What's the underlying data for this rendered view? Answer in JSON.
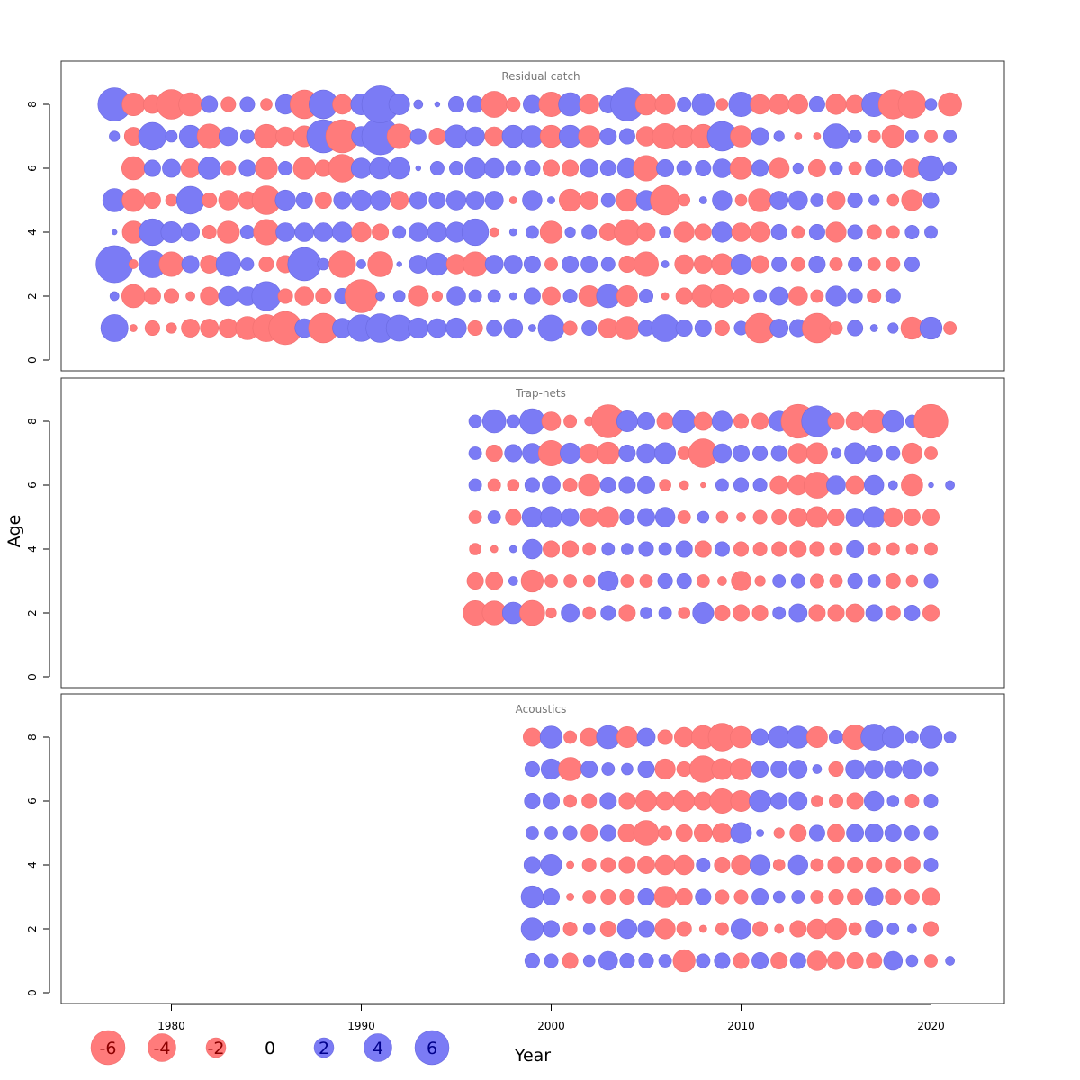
{
  "chart_data": {
    "type": "scatter",
    "subtype": "bubble",
    "xlabel": "Year",
    "ylabel": "Age",
    "xlim": [
      1974,
      2024
    ],
    "ylim": [
      0,
      9
    ],
    "x_ticks": [
      1980,
      1990,
      2000,
      2010,
      2020
    ],
    "y_ticks": [
      0,
      2,
      4,
      6,
      8
    ],
    "colors": {
      "positive": "#7b7bf5",
      "negative": "#ff7b7b"
    },
    "legend": {
      "placement": "bottom-left",
      "values": [
        -6,
        -4,
        -2,
        0,
        2,
        4,
        6
      ],
      "labels": [
        "-6",
        "-4",
        "-2",
        "0",
        "2",
        "4",
        "6"
      ]
    },
    "panels": [
      {
        "title": "Residual catch",
        "years": [
          1977,
          2021
        ],
        "ages": [
          1,
          2,
          3,
          4,
          5,
          6,
          7,
          8
        ],
        "residuals": {
          "8": [
            4.0,
            -1.9,
            -1.2,
            -3.2,
            -2.0,
            1.0,
            -0.8,
            0.8,
            -0.5,
            1.4,
            -3.0,
            3.0,
            -1.4,
            1.6,
            5.0,
            1.6,
            0.3,
            0.1,
            0.9,
            1.0,
            -2.5,
            -0.7,
            1.2,
            -2.2,
            2.0,
            -1.4,
            1.1,
            4.0,
            -1.7,
            -1.5,
            0.7,
            1.8,
            -0.5,
            2.2,
            -1.4,
            -1.5,
            -1.4,
            0.9,
            -1.5,
            -1.2,
            2.2,
            -3.1,
            -2.8,
            0.5,
            -2.0
          ],
          "7": [
            0.4,
            -1.2,
            2.8,
            0.5,
            1.8,
            -2.2,
            1.3,
            0.7,
            -2.1,
            -1.3,
            -1.6,
            4.0,
            -4.0,
            1.4,
            5.0,
            -2.2,
            0.9,
            -1.0,
            1.9,
            1.3,
            -1.3,
            1.8,
            1.7,
            -1.8,
            1.8,
            -1.7,
            1.0,
            0.9,
            -1.4,
            -2.4,
            -1.8,
            -2.1,
            3.2,
            -1.7,
            1.1,
            0.4,
            -0.2,
            -0.2,
            2.3,
            0.6,
            -0.6,
            -1.8,
            0.6,
            -0.6,
            0.6
          ],
          "6": [
            0,
            -2.0,
            1.0,
            1.2,
            -1.3,
            1.8,
            -0.8,
            1.0,
            -1.8,
            0.7,
            -1.8,
            -1.0,
            -2.8,
            1.5,
            1.7,
            1.7,
            0.1,
            0.7,
            0.7,
            1.6,
            1.4,
            0.8,
            0.9,
            -1.0,
            -1.0,
            1.2,
            0.9,
            1.4,
            -2.4,
            1.1,
            0.8,
            0.9,
            1.3,
            -1.8,
            1.0,
            -1.5,
            0.4,
            -1.1,
            0.6,
            -0.6,
            1.1,
            1.1,
            -1.3,
            2.3,
            0.6,
            -0.6
          ],
          "5": [
            2.0,
            -1.9,
            -1.0,
            -0.5,
            2.8,
            -0.8,
            -1.4,
            -1.1,
            -3.0,
            1.5,
            1.0,
            -1.0,
            1.1,
            1.5,
            1.4,
            -1.2,
            1.1,
            1.0,
            1.4,
            1.2,
            1.2,
            -0.2,
            1.4,
            0.2,
            -1.8,
            -1.2,
            0.7,
            -1.8,
            1.4,
            -3.2,
            -0.5,
            0.2,
            1.4,
            -0.5,
            -2.0,
            1.2,
            1.3,
            0.6,
            -1.2,
            0.8,
            0.4,
            -0.5,
            -1.6,
            0.9
          ],
          "4": [
            0.1,
            -1.8,
            2.6,
            1.6,
            1.2,
            -0.7,
            -1.8,
            0.7,
            -2.4,
            1.3,
            1.3,
            1.3,
            1.5,
            -1.4,
            -1.0,
            0.6,
            1.3,
            1.4,
            1.5,
            2.6,
            -0.3,
            0.2,
            0.6,
            -1.8,
            0.4,
            0.8,
            -1.1,
            -2.4,
            -1.2,
            0.5,
            -1.5,
            -1.0,
            1.5,
            -1.3,
            -1.5,
            0.9,
            -0.6,
            0.9,
            -1.5,
            0.8,
            -0.8,
            -0.6,
            0.7,
            0.6
          ],
          "3": [
            5.0,
            -0.3,
            2.7,
            -2.2,
            1.1,
            -1.2,
            2.2,
            0.6,
            -0.8,
            -1.1,
            4.0,
            0.5,
            -2.6,
            0.3,
            -2.3,
            0.1,
            1.2,
            1.8,
            -1.4,
            -2.2,
            1.2,
            1.2,
            1.0,
            -0.6,
            1.0,
            1.0,
            0.7,
            -1.0,
            -2.2,
            0.2,
            -1.3,
            -1.2,
            -1.6,
            1.5,
            -1.1,
            0.8,
            -0.7,
            1.0,
            -0.6,
            0.7,
            -0.6,
            -0.7,
            0.8
          ],
          "2": [
            0.3,
            -2.0,
            -1.0,
            -0.8,
            -0.3,
            -1.2,
            1.4,
            1.3,
            3.1,
            -0.8,
            -1.3,
            -0.9,
            0.9,
            -4.0,
            0.3,
            0.5,
            -1.5,
            -0.4,
            1.3,
            0.6,
            0.6,
            0.2,
            1.0,
            -1.2,
            0.7,
            -1.6,
            2.0,
            -1.6,
            0.7,
            -0.2,
            -1.0,
            -1.8,
            -1.9,
            -0.9,
            0.6,
            1.2,
            -1.3,
            -0.6,
            1.5,
            0.8,
            -0.7,
            0.8
          ],
          "1": [
            2.7,
            -0.2,
            -0.8,
            -0.4,
            -1.2,
            -1.2,
            -1.3,
            -2.0,
            -2.7,
            -4.0,
            1.3,
            -3.2,
            1.4,
            2.6,
            3.0,
            2.5,
            1.5,
            1.3,
            1.5,
            -0.8,
            0.9,
            1.3,
            0.2,
            2.5,
            -0.7,
            0.8,
            -1.4,
            -2.0,
            0.9,
            2.7,
            1.0,
            1.0,
            -0.8,
            0.7,
            -3.2,
            1.2,
            1.1,
            -3.2,
            -0.6,
            0.9,
            0.2,
            0.4,
            -1.8,
            1.8,
            -0.6
          ]
        }
      },
      {
        "title": "Trap-nets",
        "years": [
          1996,
          2021
        ],
        "ages": [
          2,
          3,
          4,
          5,
          6,
          7,
          8
        ],
        "residuals": {
          "8": [
            0.6,
            2.0,
            0.6,
            2.3,
            -1.3,
            -0.6,
            -0.3,
            -4.0,
            1.6,
            1.1,
            -1.0,
            1.9,
            -1.2,
            1.5,
            -0.8,
            -1.0,
            1.5,
            -4.2,
            3.5,
            -1.0,
            -1.2,
            -2.0,
            1.7,
            0.6,
            -4.2
          ],
          "7": [
            0.6,
            -1.0,
            1.1,
            1.4,
            -2.4,
            1.5,
            -1.3,
            -1.8,
            1.0,
            1.3,
            1.6,
            -0.6,
            -3.0,
            1.3,
            1.0,
            0.8,
            0.9,
            -1.4,
            -1.6,
            0.4,
            1.6,
            1.0,
            0.7,
            -1.5,
            -0.6
          ],
          "6": [
            0.6,
            -0.6,
            -0.5,
            0.8,
            1.2,
            -0.7,
            -1.7,
            0.9,
            1.0,
            1.1,
            -0.5,
            -0.3,
            -0.1,
            0.6,
            0.8,
            0.7,
            -1.2,
            -1.4,
            -2.5,
            1.3,
            -1.2,
            1.4,
            0.3,
            -1.7,
            0.1,
            0.3
          ],
          "5": [
            -0.6,
            0.6,
            -0.9,
            1.5,
            1.6,
            1.1,
            -1.2,
            -1.6,
            0.8,
            1.1,
            1.4,
            -0.6,
            0.5,
            -0.5,
            -0.3,
            -0.7,
            -0.8,
            -1.2,
            -1.6,
            -1.0,
            1.2,
            1.6,
            -1.3,
            -1.0,
            -1.0
          ],
          "4": [
            -0.5,
            -0.2,
            0.2,
            1.4,
            -1.0,
            -1.0,
            -0.6,
            0.6,
            0.5,
            0.8,
            0.6,
            1.0,
            -1.0,
            0.8,
            -0.8,
            -0.7,
            -0.8,
            -1.0,
            -0.8,
            -0.6,
            1.1,
            -0.6,
            -0.6,
            -0.5,
            -0.6
          ],
          "3": [
            -1.0,
            -1.1,
            0.3,
            -1.8,
            -0.6,
            -0.6,
            -0.5,
            1.5,
            -0.6,
            -0.6,
            0.8,
            0.8,
            -0.6,
            -0.3,
            -1.4,
            -0.4,
            0.6,
            0.7,
            -0.7,
            -0.6,
            0.8,
            0.6,
            -0.8,
            -0.5,
            0.7
          ],
          "2": [
            -2.2,
            -2.1,
            1.7,
            -2.3,
            -0.4,
            1.2,
            -0.6,
            0.8,
            -1.0,
            0.5,
            0.6,
            -0.5,
            1.6,
            -0.9,
            -1.0,
            -0.9,
            0.6,
            1.2,
            -1.0,
            -1.0,
            -1.2,
            1.0,
            -0.8,
            0.9,
            -1.0
          ]
        }
      },
      {
        "title": "Acoustics",
        "years": [
          1999,
          2021
        ],
        "ages": [
          1,
          2,
          3,
          4,
          5,
          6,
          7,
          8
        ],
        "residuals": {
          "8": [
            -1.2,
            1.8,
            -0.6,
            -1.2,
            2.0,
            -1.6,
            1.2,
            -0.8,
            -1.4,
            -2.0,
            -2.8,
            -1.7,
            1.0,
            1.7,
            1.8,
            -1.6,
            0.7,
            -2.2,
            2.5,
            1.7,
            0.6,
            1.8,
            0.5
          ],
          "7": [
            0.8,
            1.5,
            -2.0,
            1.0,
            0.6,
            0.5,
            1.0,
            -1.5,
            -0.8,
            -2.6,
            -1.6,
            -1.7,
            1.0,
            1.0,
            1.2,
            0.3,
            -0.8,
            1.3,
            1.2,
            1.1,
            1.4,
            0.7
          ],
          "6": [
            0.9,
            1.0,
            -0.6,
            -0.8,
            1.0,
            -1.0,
            -1.6,
            -1.2,
            -1.6,
            -1.2,
            -2.2,
            -1.6,
            1.7,
            1.0,
            1.2,
            -0.5,
            -0.7,
            -1.0,
            1.4,
            0.5,
            -0.7,
            0.7
          ],
          "5": [
            0.6,
            0.6,
            0.7,
            -1.0,
            0.9,
            -1.2,
            -2.3,
            -0.7,
            -1.0,
            -1.2,
            -1.4,
            1.6,
            0.2,
            -0.4,
            -1.0,
            0.9,
            -1.1,
            1.1,
            1.2,
            1.0,
            0.8,
            0.7
          ],
          "4": [
            1.0,
            1.6,
            -0.2,
            -0.7,
            -0.8,
            -1.0,
            -1.1,
            -1.4,
            -1.4,
            0.7,
            -0.9,
            -1.4,
            1.5,
            -0.5,
            1.4,
            -0.6,
            -1.0,
            -0.9,
            -0.9,
            -0.9,
            -1.0,
            0.7
          ],
          "3": [
            1.8,
            1.0,
            -0.2,
            -0.6,
            -0.8,
            -0.8,
            1.0,
            -1.7,
            -1.0,
            0.9,
            -0.7,
            -0.7,
            1.0,
            0.5,
            0.6,
            -0.6,
            -0.8,
            -0.9,
            1.2,
            -0.9,
            -0.8,
            -1.1
          ],
          "2": [
            1.8,
            1.0,
            -0.7,
            0.5,
            -0.9,
            1.4,
            1.0,
            -1.5,
            -0.8,
            -0.2,
            -0.6,
            1.5,
            -0.8,
            -0.3,
            -1.0,
            -1.4,
            -1.6,
            -0.6,
            1.1,
            0.5,
            0.3,
            -0.8
          ],
          "1": [
            0.8,
            0.7,
            -0.9,
            0.5,
            1.3,
            0.8,
            0.8,
            0.6,
            -1.8,
            0.7,
            0.9,
            -0.9,
            1.0,
            -1.0,
            0.9,
            -1.4,
            -1.1,
            -1.0,
            -0.9,
            1.3,
            0.5,
            -0.6,
            0.3
          ]
        }
      }
    ]
  }
}
